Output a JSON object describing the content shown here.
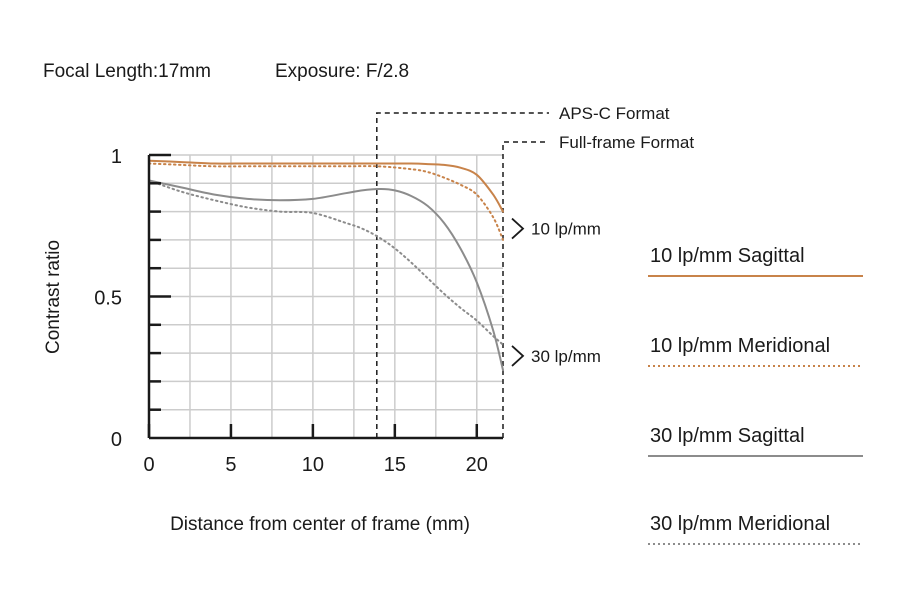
{
  "header": {
    "focal_length": "Focal Length:17mm",
    "exposure": "Exposure: F/2.8"
  },
  "colors": {
    "sagittal_10": "#c8834a",
    "meridional_10": "#c8834a",
    "sagittal_30": "#8c8c8c",
    "meridional_30": "#8c8c8c",
    "grid": "#cccccc",
    "axis": "#1a1a1a"
  },
  "chart_data": {
    "type": "line",
    "title": "",
    "xlabel": "Distance from center of frame (mm)",
    "ylabel": "Contrast ratio",
    "xlim": [
      0,
      21.6
    ],
    "ylim": [
      0,
      1
    ],
    "x_ticks": [
      0,
      5,
      10,
      15,
      20
    ],
    "x_tick_labels": [
      "0",
      "5",
      "10",
      "15",
      "20"
    ],
    "y_tick_labels": [
      {
        "value": 1,
        "label": "1"
      },
      {
        "value": 0.5,
        "label": "0.5"
      },
      {
        "value": 0,
        "label": "0"
      }
    ],
    "y_minor_ticks": [
      0.1,
      0.2,
      0.3,
      0.4,
      0.6,
      0.7,
      0.8,
      0.9
    ],
    "grid": true,
    "legend_position": "right",
    "markers": [
      {
        "label": "APS-C Format",
        "x": 13.9
      },
      {
        "label": "Full-frame Format",
        "x": 21.6
      }
    ],
    "group_labels": [
      {
        "label": "10 lp/mm",
        "y": 0.74
      },
      {
        "label": "30 lp/mm",
        "y": 0.29
      }
    ],
    "series": [
      {
        "name": "10 lp/mm Sagittal",
        "style": "solid",
        "color": "#c8834a",
        "x": [
          0,
          2,
          4,
          6,
          8,
          10,
          12,
          14,
          16,
          17,
          18,
          19,
          20,
          21,
          21.6
        ],
        "y": [
          0.98,
          0.975,
          0.97,
          0.97,
          0.97,
          0.97,
          0.97,
          0.97,
          0.97,
          0.968,
          0.965,
          0.955,
          0.93,
          0.86,
          0.8
        ]
      },
      {
        "name": "10 lp/mm Meridional",
        "style": "dotted",
        "color": "#c8834a",
        "x": [
          0,
          2,
          4,
          6,
          8,
          10,
          12,
          14,
          16,
          17,
          18,
          19,
          20,
          21,
          21.6
        ],
        "y": [
          0.97,
          0.965,
          0.96,
          0.96,
          0.96,
          0.96,
          0.96,
          0.96,
          0.95,
          0.94,
          0.92,
          0.895,
          0.86,
          0.78,
          0.7
        ]
      },
      {
        "name": "30 lp/mm Sagittal",
        "style": "solid",
        "color": "#8c8c8c",
        "x": [
          0,
          2,
          4,
          6,
          8,
          10,
          12,
          13,
          14,
          15,
          16,
          17,
          18,
          19,
          20,
          21,
          21.6
        ],
        "y": [
          0.91,
          0.885,
          0.86,
          0.845,
          0.84,
          0.845,
          0.865,
          0.875,
          0.88,
          0.875,
          0.855,
          0.82,
          0.76,
          0.67,
          0.55,
          0.38,
          0.24
        ]
      },
      {
        "name": "30 lp/mm Meridional",
        "style": "dotted",
        "color": "#8c8c8c",
        "x": [
          0,
          2,
          4,
          6,
          8,
          10,
          12,
          13,
          14,
          15,
          16,
          17,
          18,
          19,
          20,
          21,
          21.6
        ],
        "y": [
          0.91,
          0.87,
          0.84,
          0.815,
          0.8,
          0.795,
          0.76,
          0.74,
          0.71,
          0.67,
          0.62,
          0.565,
          0.51,
          0.46,
          0.415,
          0.36,
          0.33
        ]
      }
    ]
  }
}
